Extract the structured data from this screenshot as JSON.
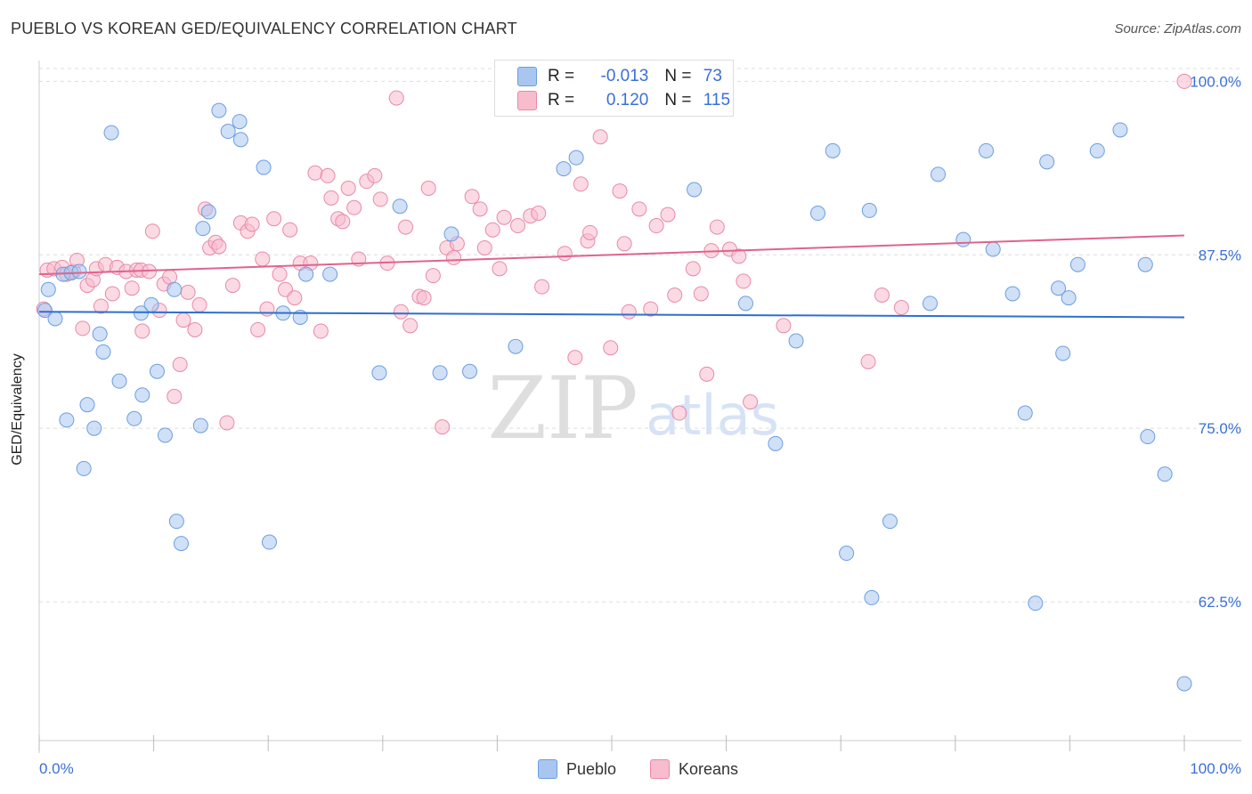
{
  "title": "PUEBLO VS KOREAN GED/EQUIVALENCY CORRELATION CHART",
  "source": "Source: ZipAtlas.com",
  "watermark": {
    "zip": "ZIP",
    "atlas": "atlas"
  },
  "colors": {
    "pueblo_fill": "#a9c6f0",
    "pueblo_stroke": "#6b9ee0",
    "pueblo_line": "#2e6fce",
    "korean_fill": "#f7bccd",
    "korean_stroke": "#e88aa6",
    "korean_line": "#e0638e",
    "axis_text": "#3a6fd8",
    "grid": "#dddddd"
  },
  "stats": {
    "pueblo": {
      "r_label": "R = ",
      "r": "-0.013",
      "n_label": "N = ",
      "n": "73"
    },
    "koreans": {
      "r_label": "R = ",
      "r": "0.120",
      "n_label": "N = ",
      "n": "115"
    }
  },
  "legend": {
    "pueblo": "Pueblo",
    "koreans": "Koreans"
  },
  "chart_data": {
    "type": "scatter",
    "title": "PUEBLO VS KOREAN GED/EQUIVALENCY CORRELATION CHART",
    "xlabel": "",
    "ylabel": "GED/Equivalency",
    "xlim": [
      0,
      100
    ],
    "ylim": [
      52.5,
      101.5
    ],
    "x_tick_labels": [
      "0.0%",
      "100.0%"
    ],
    "y_ticks": [
      62.5,
      75.0,
      87.5,
      100.0
    ],
    "y_tick_labels": [
      "62.5%",
      "75.0%",
      "87.5%",
      "100.0%"
    ],
    "grid": true,
    "legend_position": "bottom-center",
    "series": [
      {
        "name": "Pueblo",
        "trend": {
          "x": [
            0,
            100
          ],
          "y": [
            83.4,
            83.0
          ]
        },
        "points": [
          [
            0.5,
            83.5
          ],
          [
            0.8,
            85.0
          ],
          [
            1.4,
            82.9
          ],
          [
            2.1,
            86.1
          ],
          [
            2.4,
            75.6
          ],
          [
            2.8,
            86.2
          ],
          [
            3.5,
            86.3
          ],
          [
            3.9,
            72.1
          ],
          [
            4.2,
            76.7
          ],
          [
            4.8,
            75.0
          ],
          [
            5.3,
            81.8
          ],
          [
            5.6,
            80.5
          ],
          [
            6.3,
            96.3
          ],
          [
            7.0,
            78.4
          ],
          [
            8.3,
            75.7
          ],
          [
            8.9,
            83.3
          ],
          [
            9.0,
            77.4
          ],
          [
            9.8,
            83.9
          ],
          [
            10.3,
            79.1
          ],
          [
            11.0,
            74.5
          ],
          [
            11.8,
            85.0
          ],
          [
            12.0,
            68.3
          ],
          [
            12.4,
            66.7
          ],
          [
            14.1,
            75.2
          ],
          [
            14.3,
            89.4
          ],
          [
            14.8,
            90.6
          ],
          [
            15.7,
            97.9
          ],
          [
            16.5,
            96.4
          ],
          [
            17.5,
            97.1
          ],
          [
            17.6,
            95.8
          ],
          [
            19.6,
            93.8
          ],
          [
            20.1,
            66.8
          ],
          [
            21.3,
            83.3
          ],
          [
            22.8,
            83.0
          ],
          [
            23.3,
            86.1
          ],
          [
            25.4,
            86.1
          ],
          [
            29.7,
            79.0
          ],
          [
            31.5,
            91.0
          ],
          [
            35.0,
            79.0
          ],
          [
            36.0,
            89.0
          ],
          [
            37.6,
            79.1
          ],
          [
            41.6,
            80.9
          ],
          [
            45.8,
            93.7
          ],
          [
            46.9,
            94.5
          ],
          [
            57.2,
            92.2
          ],
          [
            61.7,
            84.0
          ],
          [
            64.3,
            73.9
          ],
          [
            66.1,
            81.3
          ],
          [
            68.0,
            90.5
          ],
          [
            69.3,
            95.0
          ],
          [
            70.5,
            66.0
          ],
          [
            72.5,
            90.7
          ],
          [
            72.7,
            62.8
          ],
          [
            74.3,
            68.3
          ],
          [
            77.8,
            84.0
          ],
          [
            78.5,
            93.3
          ],
          [
            80.7,
            88.6
          ],
          [
            82.7,
            95.0
          ],
          [
            83.3,
            87.9
          ],
          [
            85.0,
            84.7
          ],
          [
            86.1,
            76.1
          ],
          [
            87.0,
            62.4
          ],
          [
            88.0,
            94.2
          ],
          [
            89.0,
            85.1
          ],
          [
            89.4,
            80.4
          ],
          [
            89.9,
            84.4
          ],
          [
            90.7,
            86.8
          ],
          [
            92.4,
            95.0
          ],
          [
            94.4,
            96.5
          ],
          [
            96.6,
            86.8
          ],
          [
            96.8,
            74.4
          ],
          [
            98.3,
            71.7
          ],
          [
            100.0,
            56.6
          ]
        ]
      },
      {
        "name": "Koreans",
        "trend": {
          "x": [
            0,
            100
          ],
          "y": [
            86.1,
            88.9
          ]
        },
        "points": [
          [
            0.4,
            83.6
          ],
          [
            0.7,
            86.4
          ],
          [
            1.3,
            86.5
          ],
          [
            2.0,
            86.6
          ],
          [
            2.4,
            86.1
          ],
          [
            3.0,
            86.3
          ],
          [
            3.3,
            87.1
          ],
          [
            3.8,
            82.2
          ],
          [
            4.2,
            85.3
          ],
          [
            4.7,
            85.7
          ],
          [
            5.0,
            86.5
          ],
          [
            5.4,
            83.8
          ],
          [
            5.8,
            86.8
          ],
          [
            6.4,
            84.7
          ],
          [
            6.8,
            86.6
          ],
          [
            7.6,
            86.3
          ],
          [
            8.1,
            85.1
          ],
          [
            8.5,
            86.4
          ],
          [
            8.9,
            86.4
          ],
          [
            9.0,
            82.0
          ],
          [
            9.6,
            86.3
          ],
          [
            9.9,
            89.2
          ],
          [
            10.5,
            83.5
          ],
          [
            10.9,
            85.4
          ],
          [
            11.4,
            85.9
          ],
          [
            11.8,
            77.3
          ],
          [
            12.3,
            79.6
          ],
          [
            12.6,
            82.8
          ],
          [
            13.0,
            84.8
          ],
          [
            13.6,
            82.1
          ],
          [
            14.0,
            83.9
          ],
          [
            14.5,
            90.8
          ],
          [
            14.9,
            88.0
          ],
          [
            15.4,
            88.4
          ],
          [
            15.7,
            88.1
          ],
          [
            16.4,
            75.4
          ],
          [
            16.9,
            85.3
          ],
          [
            17.6,
            89.8
          ],
          [
            18.2,
            89.2
          ],
          [
            18.6,
            89.7
          ],
          [
            19.1,
            82.1
          ],
          [
            19.5,
            87.2
          ],
          [
            19.9,
            83.6
          ],
          [
            20.5,
            90.1
          ],
          [
            21.0,
            86.1
          ],
          [
            21.5,
            85.0
          ],
          [
            21.9,
            89.3
          ],
          [
            22.3,
            84.4
          ],
          [
            22.8,
            86.9
          ],
          [
            23.7,
            86.9
          ],
          [
            24.1,
            93.4
          ],
          [
            24.6,
            82.0
          ],
          [
            25.2,
            93.2
          ],
          [
            25.5,
            91.6
          ],
          [
            26.1,
            90.1
          ],
          [
            26.5,
            89.9
          ],
          [
            27.0,
            92.3
          ],
          [
            27.5,
            90.9
          ],
          [
            27.9,
            87.2
          ],
          [
            28.6,
            92.8
          ],
          [
            29.3,
            93.2
          ],
          [
            29.8,
            91.5
          ],
          [
            30.4,
            86.9
          ],
          [
            31.2,
            98.8
          ],
          [
            31.6,
            83.4
          ],
          [
            32.0,
            89.5
          ],
          [
            32.4,
            82.4
          ],
          [
            33.2,
            84.5
          ],
          [
            33.6,
            84.4
          ],
          [
            34.0,
            92.3
          ],
          [
            34.4,
            86.0
          ],
          [
            35.2,
            75.1
          ],
          [
            35.6,
            88.0
          ],
          [
            36.2,
            87.3
          ],
          [
            36.5,
            88.3
          ],
          [
            37.8,
            91.7
          ],
          [
            38.5,
            90.8
          ],
          [
            38.9,
            88.0
          ],
          [
            39.6,
            89.3
          ],
          [
            40.2,
            86.5
          ],
          [
            40.6,
            90.2
          ],
          [
            41.8,
            89.6
          ],
          [
            42.9,
            90.3
          ],
          [
            43.6,
            90.5
          ],
          [
            43.9,
            85.2
          ],
          [
            45.9,
            87.6
          ],
          [
            46.8,
            80.1
          ],
          [
            47.3,
            92.6
          ],
          [
            47.9,
            88.5
          ],
          [
            48.1,
            89.1
          ],
          [
            49.0,
            96.0
          ],
          [
            49.9,
            80.8
          ],
          [
            50.7,
            92.1
          ],
          [
            51.1,
            88.3
          ],
          [
            51.5,
            83.4
          ],
          [
            52.4,
            90.8
          ],
          [
            53.4,
            83.6
          ],
          [
            53.9,
            89.6
          ],
          [
            54.9,
            90.4
          ],
          [
            55.5,
            84.6
          ],
          [
            55.9,
            76.1
          ],
          [
            57.1,
            86.5
          ],
          [
            57.8,
            84.7
          ],
          [
            58.3,
            78.9
          ],
          [
            58.7,
            87.8
          ],
          [
            59.2,
            89.5
          ],
          [
            60.3,
            87.9
          ],
          [
            61.1,
            87.4
          ],
          [
            61.5,
            85.6
          ],
          [
            62.1,
            76.9
          ],
          [
            65.0,
            82.4
          ],
          [
            72.4,
            79.8
          ],
          [
            73.6,
            84.6
          ],
          [
            75.3,
            83.7
          ],
          [
            100.0,
            100.0
          ]
        ]
      }
    ]
  }
}
